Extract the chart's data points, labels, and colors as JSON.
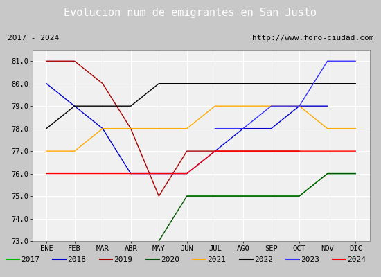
{
  "title": "Evolucion num de emigrantes en San Justo",
  "subtitle_left": "2017 - 2024",
  "subtitle_right": "http://www.foro-ciudad.com",
  "months": [
    "ENE",
    "FEB",
    "MAR",
    "ABR",
    "MAY",
    "JUN",
    "JUL",
    "AGO",
    "SEP",
    "OCT",
    "NOV",
    "DIC"
  ],
  "ylim": [
    73.0,
    81.5
  ],
  "yticks": [
    73.0,
    74.0,
    75.0,
    76.0,
    77.0,
    78.0,
    79.0,
    80.0,
    81.0
  ],
  "series": [
    {
      "year": "2017",
      "color": "#00bb00",
      "data": [
        null,
        null,
        null,
        null,
        null,
        75.0,
        75.0,
        75.0,
        75.0,
        75.0,
        76.0,
        76.0
      ]
    },
    {
      "year": "2018",
      "color": "#0000cc",
      "data": [
        80.0,
        79.0,
        78.0,
        76.0,
        76.0,
        76.0,
        77.0,
        78.0,
        78.0,
        79.0,
        79.0,
        null
      ]
    },
    {
      "year": "2019",
      "color": "#aa0000",
      "data": [
        81.0,
        81.0,
        80.0,
        78.0,
        75.0,
        77.0,
        77.0,
        77.0,
        77.0,
        77.0,
        null,
        null
      ]
    },
    {
      "year": "2020",
      "color": "#005500",
      "data": [
        null,
        null,
        null,
        null,
        73.0,
        75.0,
        75.0,
        75.0,
        75.0,
        75.0,
        76.0,
        76.0
      ]
    },
    {
      "year": "2021",
      "color": "#ffaa00",
      "data": [
        77.0,
        77.0,
        78.0,
        78.0,
        78.0,
        78.0,
        79.0,
        79.0,
        79.0,
        79.0,
        78.0,
        78.0
      ]
    },
    {
      "year": "2022",
      "color": "#000000",
      "data": [
        78.0,
        79.0,
        79.0,
        79.0,
        80.0,
        80.0,
        80.0,
        80.0,
        80.0,
        80.0,
        80.0,
        80.0
      ]
    },
    {
      "year": "2023",
      "color": "#3333ff",
      "data": [
        null,
        null,
        null,
        null,
        null,
        null,
        78.0,
        78.0,
        79.0,
        79.0,
        81.0,
        81.0
      ]
    },
    {
      "year": "2024",
      "color": "#ff0000",
      "data": [
        76.0,
        76.0,
        76.0,
        76.0,
        76.0,
        76.0,
        77.0,
        77.0,
        77.0,
        77.0,
        77.0,
        77.0
      ]
    }
  ],
  "title_bg": "#4f86c6",
  "title_color": "#ffffff",
  "title_fontsize": 11,
  "tick_fontsize": 7.5,
  "subtitle_fontsize": 8,
  "plot_bg": "#e8e8e8",
  "inner_bg": "#f0f0f0",
  "grid_color": "#ffffff",
  "legend_fontsize": 8,
  "outer_bg": "#c8c8c8"
}
